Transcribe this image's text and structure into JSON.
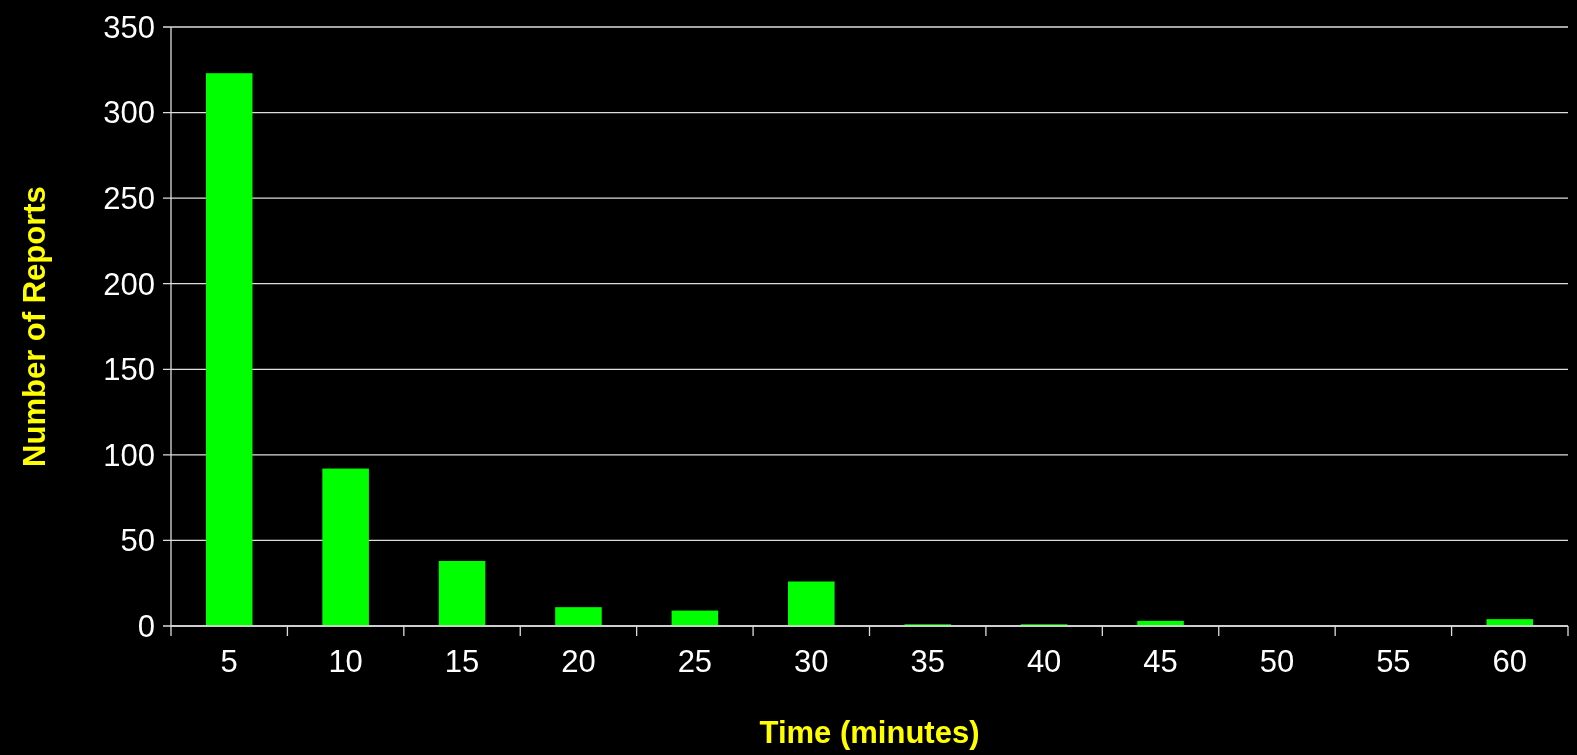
{
  "chart_data": {
    "type": "bar",
    "xlabel": "Time (minutes)",
    "ylabel": "Number of Reports",
    "categories": [
      "5",
      "10",
      "15",
      "20",
      "25",
      "30",
      "35",
      "40",
      "45",
      "50",
      "55",
      "60"
    ],
    "values": [
      323,
      92,
      38,
      11,
      9,
      26,
      1,
      1,
      3,
      0,
      0,
      4
    ],
    "color": "#00ff00",
    "ylim": [
      0,
      350
    ],
    "yticks": [
      0,
      50,
      100,
      150,
      200,
      250,
      300,
      350
    ],
    "grid": "y"
  }
}
